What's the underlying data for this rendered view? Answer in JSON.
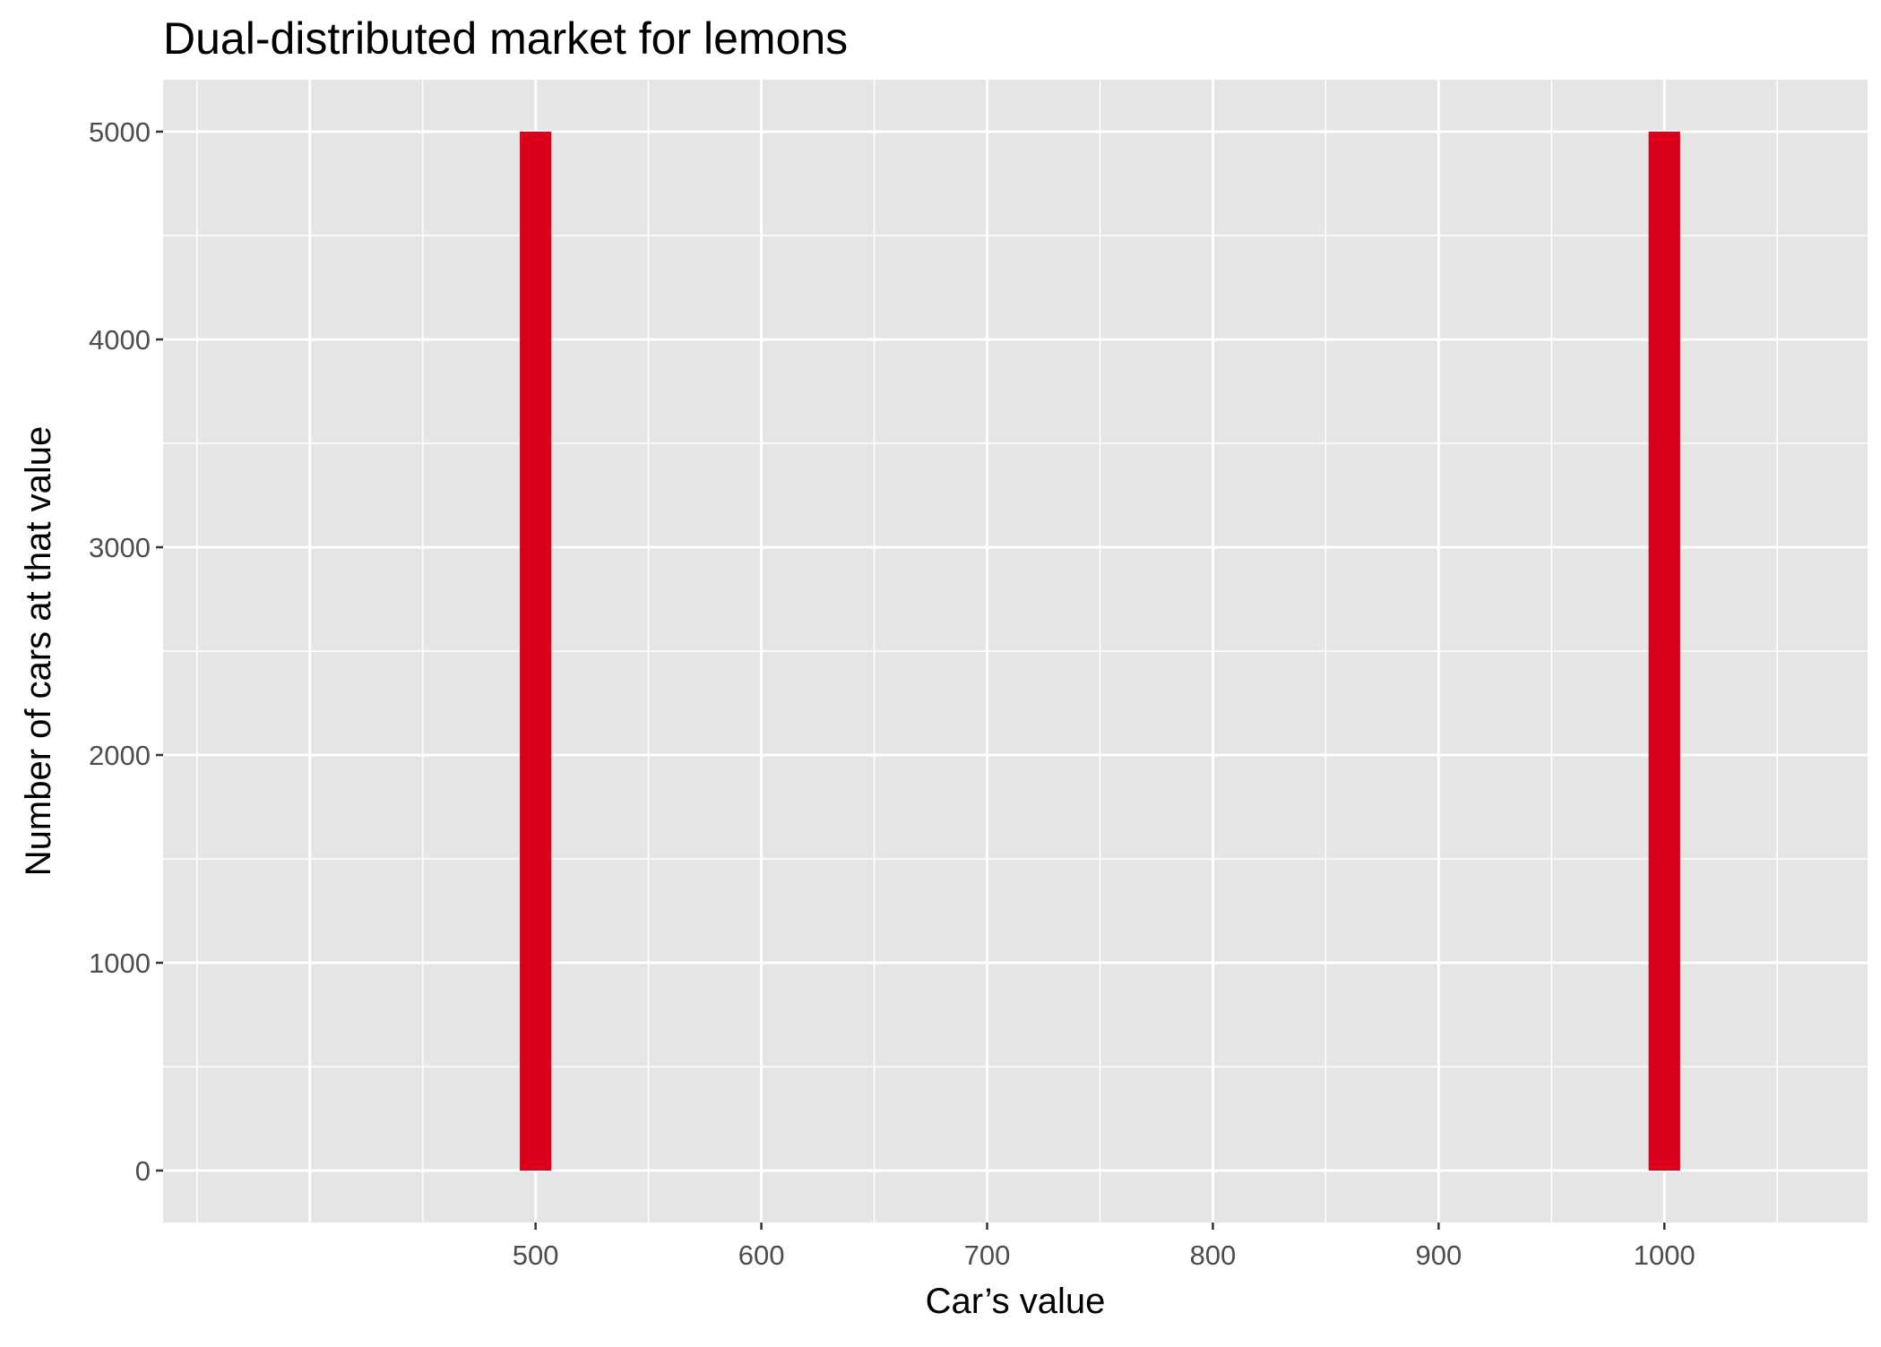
{
  "chart_data": {
    "type": "bar",
    "title": "Dual-distributed market for lemons",
    "xlabel": "Car’s value",
    "ylabel": "Number of cars at that value",
    "x_ticks": [
      500,
      600,
      700,
      800,
      900,
      1000
    ],
    "y_ticks": [
      0,
      1000,
      2000,
      3000,
      4000,
      5000
    ],
    "xlim": [
      335,
      1090
    ],
    "ylim": [
      -250,
      5250
    ],
    "grid": true,
    "bar_color": "#db001b",
    "panel_color": "#e5e5e5",
    "grid_color": "#ffffff",
    "series": [
      {
        "bars": [
          {
            "x": 500,
            "value": 5000
          },
          {
            "x": 1000,
            "value": 5000
          }
        ]
      }
    ]
  }
}
